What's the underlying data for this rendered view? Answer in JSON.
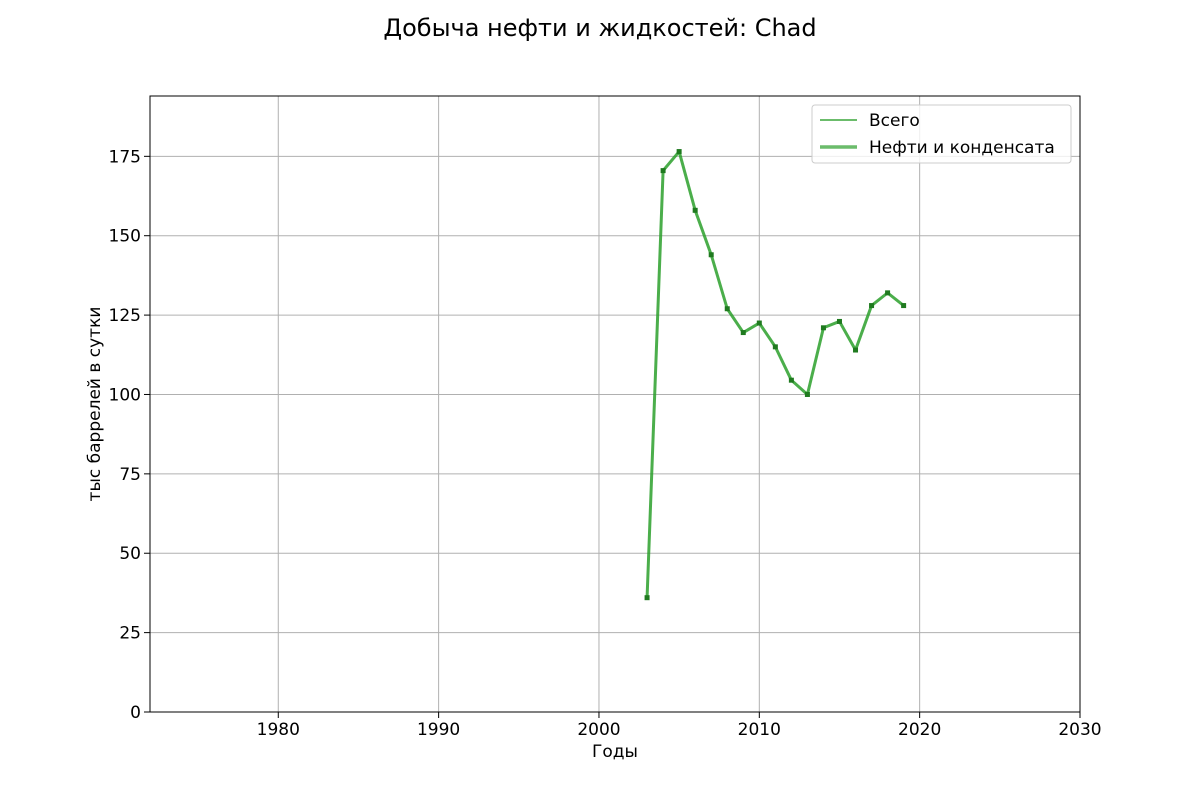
{
  "chart_data": {
    "type": "line",
    "title": "Добыча нефти и жидкостей: Chad",
    "xlabel": "Годы",
    "ylabel": "тыс баррелей в сутки",
    "xlim": [
      1972,
      2030
    ],
    "ylim": [
      0,
      194
    ],
    "xticks": [
      1980,
      1990,
      2000,
      2010,
      2020,
      2030
    ],
    "yticks": [
      0,
      25,
      50,
      75,
      100,
      125,
      150,
      175
    ],
    "grid": true,
    "legend_position": "top-right",
    "series": [
      {
        "name": "Всего",
        "color": "#2ca02c",
        "x": [],
        "y": []
      },
      {
        "name": "Нефти и конденсата",
        "color": "#2ca02c",
        "x": [
          2003,
          2004,
          2005,
          2006,
          2007,
          2008,
          2009,
          2010,
          2011,
          2012,
          2013,
          2014,
          2015,
          2016,
          2017,
          2018,
          2019
        ],
        "y": [
          36,
          170.5,
          176.5,
          158,
          144,
          127,
          119.5,
          122.5,
          115,
          104.5,
          100,
          121,
          123,
          114,
          128,
          132,
          128
        ]
      }
    ]
  }
}
